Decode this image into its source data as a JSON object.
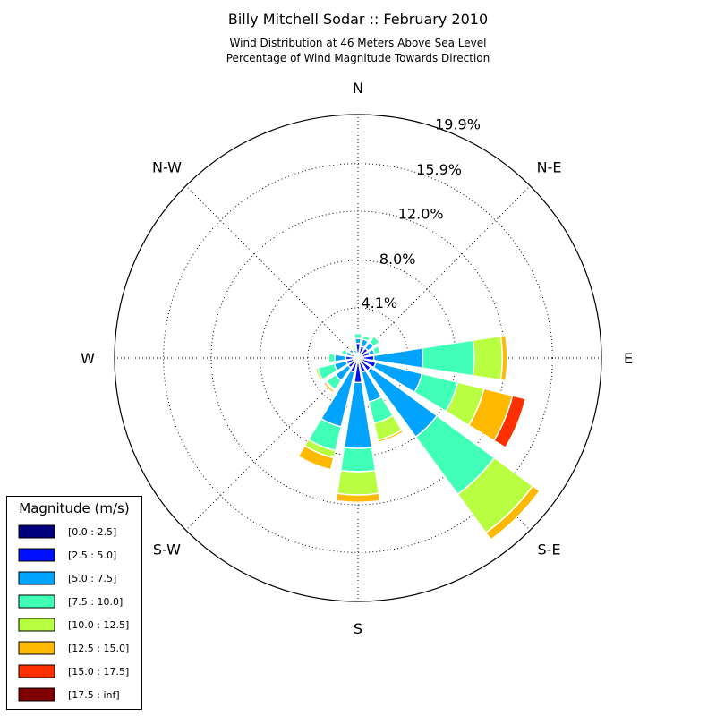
{
  "chart_data": {
    "type": "windrose",
    "title": "Billy Mitchell Sodar :: February 2010",
    "subtitle_line1": "Wind Distribution at 46 Meters Above Sea Level",
    "subtitle_line2": "Percentage of Wind Magnitude Towards Direction",
    "direction_labels": [
      {
        "dir": 0,
        "label": "N"
      },
      {
        "dir": 45,
        "label": "N-E"
      },
      {
        "dir": 90,
        "label": "E"
      },
      {
        "dir": 135,
        "label": "S-E"
      },
      {
        "dir": 180,
        "label": "S"
      },
      {
        "dir": 225,
        "label": "S-W"
      },
      {
        "dir": 270,
        "label": "W"
      },
      {
        "dir": 315,
        "label": "N-W"
      }
    ],
    "radial_ticks": [
      {
        "value": 4.1,
        "label": "4.1%"
      },
      {
        "value": 8.0,
        "label": "8.0%"
      },
      {
        "value": 12.0,
        "label": "12.0%"
      },
      {
        "value": 15.9,
        "label": "15.9%"
      },
      {
        "value": 19.9,
        "label": "19.9%"
      }
    ],
    "r_max": 19.9,
    "grid": true,
    "legend_position": "bottom-left",
    "legend_title": "Magnitude (m/s)",
    "bins": [
      {
        "label": "[0.0 : 2.5]",
        "color": "#00007f"
      },
      {
        "label": "[2.5 : 5.0]",
        "color": "#0010ff"
      },
      {
        "label": "[5.0 : 7.5]",
        "color": "#00a4ff"
      },
      {
        "label": "[7.5 : 10.0]",
        "color": "#40ffb7"
      },
      {
        "label": "[10.0 : 12.5]",
        "color": "#b7ff40"
      },
      {
        "label": "[12.5 : 15.0]",
        "color": "#ffb900"
      },
      {
        "label": "[15.0 : 17.5]",
        "color": "#ff3000"
      },
      {
        "label": "[17.5 : inf]",
        "color": "#7f0000"
      }
    ],
    "sectors": [
      {
        "dir": 0,
        "cumulative": [
          0.1,
          1.2,
          1.6,
          2.0,
          2.1,
          2.2,
          2.2,
          2.2
        ]
      },
      {
        "dir": 22.5,
        "cumulative": [
          0.1,
          1.0,
          1.6,
          1.9,
          2.0,
          2.0,
          2.0,
          2.0
        ]
      },
      {
        "dir": 45,
        "cumulative": [
          0.1,
          1.0,
          1.6,
          2.2,
          2.3,
          2.3,
          2.3,
          2.3
        ]
      },
      {
        "dir": 67.5,
        "cumulative": [
          0.1,
          1.0,
          1.4,
          1.9,
          2.0,
          2.0,
          2.0,
          2.0
        ]
      },
      {
        "dir": 90,
        "cumulative": [
          0.1,
          1.3,
          5.3,
          9.5,
          11.8,
          12.2,
          12.2,
          12.2
        ]
      },
      {
        "dir": 112.5,
        "cumulative": [
          0.1,
          1.5,
          5.4,
          8.4,
          10.6,
          13.0,
          14.1,
          14.1
        ]
      },
      {
        "dir": 135,
        "cumulative": [
          0.1,
          1.3,
          8.0,
          13.8,
          17.7,
          18.4,
          18.4,
          18.4
        ]
      },
      {
        "dir": 157.5,
        "cumulative": [
          0.1,
          1.2,
          3.7,
          5.5,
          6.9,
          7.1,
          7.1,
          7.1
        ]
      },
      {
        "dir": 180,
        "cumulative": [
          0.1,
          2.0,
          7.4,
          9.3,
          11.2,
          11.8,
          11.8,
          11.8
        ]
      },
      {
        "dir": 202.5,
        "cumulative": [
          0.1,
          1.2,
          5.8,
          7.8,
          8.4,
          9.4,
          9.4,
          9.4
        ]
      },
      {
        "dir": 225,
        "cumulative": [
          0.1,
          1.0,
          2.3,
          3.2,
          3.3,
          3.5,
          3.5,
          3.5
        ]
      },
      {
        "dir": 247.5,
        "cumulative": [
          0.1,
          1.0,
          2.0,
          3.4,
          3.6,
          3.6,
          3.6,
          3.6
        ]
      },
      {
        "dir": 270,
        "cumulative": [
          0.1,
          1.0,
          1.9,
          2.4,
          2.5,
          2.5,
          2.5,
          2.5
        ]
      },
      {
        "dir": 292.5,
        "cumulative": [
          0.1,
          0.6,
          1.0,
          1.4,
          1.4,
          1.4,
          1.4,
          1.4
        ]
      },
      {
        "dir": 315,
        "cumulative": [
          0.1,
          0.6,
          0.9,
          1.0,
          1.0,
          1.0,
          1.0,
          1.0
        ]
      },
      {
        "dir": 337.5,
        "cumulative": [
          0.1,
          0.4,
          0.7,
          0.9,
          1.1,
          1.1,
          1.1,
          1.1
        ]
      }
    ]
  }
}
